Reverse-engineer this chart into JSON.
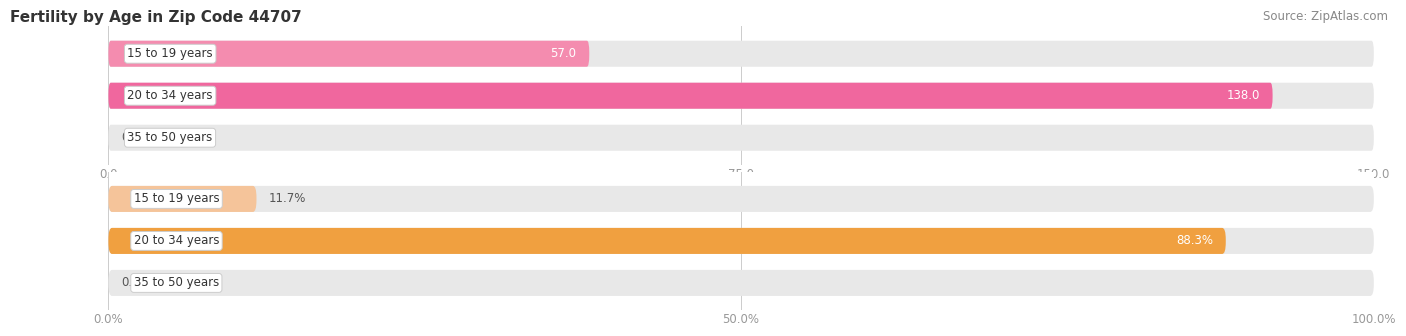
{
  "title": "Fertility by Age in Zip Code 44707",
  "source": "Source: ZipAtlas.com",
  "top_chart": {
    "categories": [
      "15 to 19 years",
      "20 to 34 years",
      "35 to 50 years"
    ],
    "values": [
      57.0,
      138.0,
      0.0
    ],
    "value_labels": [
      "57.0",
      "138.0",
      "0.0"
    ],
    "xlim": [
      0,
      150
    ],
    "xticks": [
      0.0,
      75.0,
      150.0
    ],
    "xtick_labels": [
      "0.0",
      "75.0",
      "150.0"
    ],
    "bar_colors": [
      "#f48caf",
      "#f0679e",
      "#f48caf"
    ],
    "label_threshold": 0.12
  },
  "bottom_chart": {
    "categories": [
      "15 to 19 years",
      "20 to 34 years",
      "35 to 50 years"
    ],
    "values": [
      11.7,
      88.3,
      0.0
    ],
    "value_labels": [
      "11.7%",
      "88.3%",
      "0.0%"
    ],
    "xlim": [
      0,
      100
    ],
    "xticks": [
      0.0,
      50.0,
      100.0
    ],
    "xtick_labels": [
      "0.0%",
      "50.0%",
      "100.0%"
    ],
    "bar_colors": [
      "#f5c49a",
      "#f0a040",
      "#f5c49a"
    ],
    "label_threshold": 0.12
  },
  "bg_color": "#ffffff",
  "bar_bg_color": "#e8e8e8",
  "bar_height": 0.62,
  "title_fontsize": 11,
  "source_fontsize": 8.5,
  "tick_fontsize": 8.5,
  "cat_fontsize": 8.5,
  "label_fontsize": 8.5
}
